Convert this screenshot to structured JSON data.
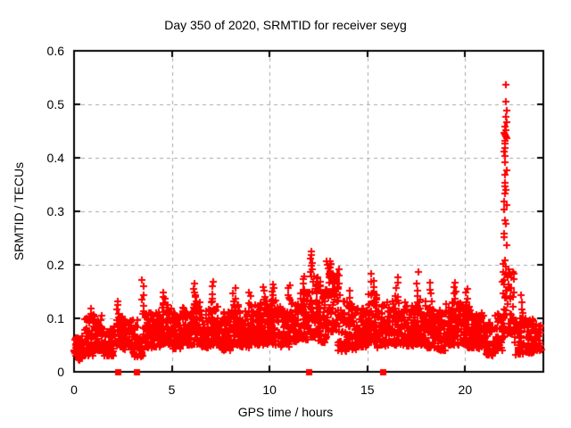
{
  "chart_data": {
    "type": "scatter",
    "title": "Day 350 of 2020, SRMTID for receiver seyg",
    "xlabel": "GPS time / hours",
    "ylabel": "SRMTID / TECUs",
    "xlim": [
      0,
      24
    ],
    "ylim": [
      0,
      0.6
    ],
    "xticks": [
      0,
      5,
      10,
      15,
      20
    ],
    "xtick_labels": [
      "0",
      "5",
      "10",
      "15",
      "20"
    ],
    "yticks": [
      0,
      0.1,
      0.2,
      0.3,
      0.4,
      0.5,
      0.6
    ],
    "ytick_labels": [
      "0",
      "0.1",
      "0.2",
      "0.3",
      "0.4",
      "0.5",
      "0.6"
    ],
    "grid": true,
    "legend": "none",
    "marker": "plus",
    "colors": {
      "marker": "#ff0000",
      "grid": "#a8a8a8",
      "border": "#000000",
      "background": "#ffffff",
      "text": "#000000"
    },
    "seed": 350,
    "band_bins": [
      [
        0.0,
        0.5,
        50,
        0.022,
        0.068
      ],
      [
        0.5,
        1.0,
        55,
        0.03,
        0.1
      ],
      [
        1.0,
        1.5,
        55,
        0.04,
        0.108
      ],
      [
        1.5,
        2.0,
        50,
        0.03,
        0.082
      ],
      [
        2.0,
        2.5,
        55,
        0.045,
        0.105
      ],
      [
        2.5,
        3.0,
        55,
        0.04,
        0.098
      ],
      [
        3.0,
        3.5,
        45,
        0.028,
        0.1
      ],
      [
        3.5,
        4.0,
        50,
        0.045,
        0.115
      ],
      [
        4.0,
        4.5,
        55,
        0.045,
        0.112
      ],
      [
        4.5,
        5.0,
        55,
        0.05,
        0.126
      ],
      [
        5.0,
        5.5,
        55,
        0.042,
        0.11
      ],
      [
        5.5,
        6.0,
        55,
        0.05,
        0.122
      ],
      [
        6.0,
        6.5,
        55,
        0.05,
        0.132
      ],
      [
        6.5,
        7.0,
        55,
        0.045,
        0.118
      ],
      [
        7.0,
        7.5,
        55,
        0.05,
        0.13
      ],
      [
        7.5,
        8.0,
        55,
        0.04,
        0.112
      ],
      [
        8.0,
        8.5,
        55,
        0.05,
        0.126
      ],
      [
        8.5,
        9.0,
        55,
        0.045,
        0.118
      ],
      [
        9.0,
        9.5,
        55,
        0.05,
        0.126
      ],
      [
        9.5,
        10.0,
        55,
        0.05,
        0.132
      ],
      [
        10.0,
        10.5,
        55,
        0.05,
        0.136
      ],
      [
        10.5,
        11.0,
        55,
        0.046,
        0.122
      ],
      [
        11.0,
        11.5,
        55,
        0.055,
        0.136
      ],
      [
        11.5,
        12.0,
        55,
        0.06,
        0.155
      ],
      [
        12.0,
        12.5,
        55,
        0.065,
        0.182
      ],
      [
        12.5,
        13.0,
        55,
        0.055,
        0.162
      ],
      [
        13.0,
        13.5,
        55,
        0.075,
        0.185
      ],
      [
        13.5,
        14.0,
        55,
        0.038,
        0.132
      ],
      [
        14.0,
        14.5,
        55,
        0.04,
        0.122
      ],
      [
        14.5,
        15.0,
        55,
        0.045,
        0.12
      ],
      [
        15.0,
        15.5,
        55,
        0.055,
        0.15
      ],
      [
        15.5,
        16.0,
        55,
        0.045,
        0.128
      ],
      [
        16.0,
        16.5,
        55,
        0.05,
        0.142
      ],
      [
        16.5,
        17.0,
        55,
        0.05,
        0.132
      ],
      [
        17.0,
        17.5,
        55,
        0.048,
        0.125
      ],
      [
        17.5,
        18.0,
        55,
        0.05,
        0.135
      ],
      [
        18.0,
        18.5,
        55,
        0.045,
        0.122
      ],
      [
        18.5,
        19.0,
        55,
        0.04,
        0.115
      ],
      [
        19.0,
        19.5,
        55,
        0.05,
        0.13
      ],
      [
        19.5,
        20.0,
        55,
        0.05,
        0.13
      ],
      [
        20.0,
        20.5,
        55,
        0.045,
        0.122
      ],
      [
        20.5,
        21.0,
        55,
        0.04,
        0.112
      ],
      [
        21.0,
        21.5,
        50,
        0.03,
        0.096
      ],
      [
        21.5,
        22.0,
        45,
        0.04,
        0.112
      ],
      [
        22.0,
        22.5,
        50,
        0.07,
        0.19
      ],
      [
        22.5,
        23.0,
        50,
        0.032,
        0.108
      ],
      [
        23.0,
        23.5,
        45,
        0.035,
        0.1
      ],
      [
        23.5,
        23.9,
        30,
        0.04,
        0.09
      ]
    ],
    "peak_clusters": [
      [
        0.85,
        0.118,
        4
      ],
      [
        2.25,
        0.132,
        5
      ],
      [
        3.52,
        0.172,
        6
      ],
      [
        4.6,
        0.148,
        5
      ],
      [
        6.15,
        0.165,
        6
      ],
      [
        7.1,
        0.168,
        5
      ],
      [
        8.2,
        0.156,
        5
      ],
      [
        9.0,
        0.148,
        4
      ],
      [
        9.75,
        0.158,
        5
      ],
      [
        10.15,
        0.163,
        5
      ],
      [
        11.0,
        0.162,
        5
      ],
      [
        11.8,
        0.178,
        5
      ],
      [
        12.55,
        0.168,
        4
      ],
      [
        13.1,
        0.206,
        6
      ],
      [
        13.55,
        0.192,
        6
      ],
      [
        14.1,
        0.152,
        4
      ],
      [
        15.25,
        0.183,
        6
      ],
      [
        16.5,
        0.176,
        5
      ],
      [
        17.6,
        0.186,
        4
      ],
      [
        18.25,
        0.166,
        5
      ],
      [
        19.45,
        0.166,
        6
      ],
      [
        20.1,
        0.155,
        5
      ],
      [
        22.9,
        0.143,
        4
      ]
    ],
    "outlier_points": [
      [
        22.08,
        0.536
      ],
      [
        22.1,
        0.505
      ],
      [
        22.13,
        0.489
      ],
      [
        22.07,
        0.476
      ],
      [
        22.11,
        0.467
      ],
      [
        22.04,
        0.459
      ],
      [
        22.09,
        0.452
      ],
      [
        22.0,
        0.447
      ],
      [
        22.03,
        0.443
      ],
      [
        22.07,
        0.44
      ],
      [
        22.11,
        0.436
      ],
      [
        22.02,
        0.431
      ],
      [
        22.06,
        0.427
      ],
      [
        22.04,
        0.419
      ],
      [
        22.0,
        0.411
      ],
      [
        22.05,
        0.404
      ],
      [
        22.03,
        0.391
      ],
      [
        22.12,
        0.376
      ],
      [
        22.05,
        0.369
      ],
      [
        22.02,
        0.353
      ],
      [
        22.06,
        0.346
      ],
      [
        22.1,
        0.34
      ],
      [
        22.03,
        0.334
      ],
      [
        21.98,
        0.318
      ],
      [
        22.12,
        0.311
      ],
      [
        22.0,
        0.304
      ],
      [
        22.06,
        0.283
      ],
      [
        22.09,
        0.276
      ],
      [
        21.97,
        0.259
      ],
      [
        22.01,
        0.252
      ],
      [
        22.15,
        0.236
      ],
      [
        22.03,
        0.208
      ],
      [
        21.95,
        0.201
      ],
      [
        22.1,
        0.197
      ],
      [
        22.2,
        0.191
      ],
      [
        21.93,
        0.186
      ],
      [
        22.05,
        0.181
      ],
      [
        22.17,
        0.176
      ],
      [
        21.9,
        0.169
      ],
      [
        22.0,
        0.164
      ],
      [
        22.22,
        0.158
      ],
      [
        22.12,
        0.151
      ],
      [
        21.96,
        0.146
      ],
      [
        22.3,
        0.141
      ],
      [
        12.12,
        0.225
      ],
      [
        12.15,
        0.218
      ],
      [
        12.1,
        0.211
      ],
      [
        12.17,
        0.204
      ],
      [
        12.13,
        0.198
      ],
      [
        12.2,
        0.192
      ],
      [
        12.08,
        0.186
      ],
      [
        12.15,
        0.179
      ],
      [
        12.9,
        0.207
      ],
      [
        12.95,
        0.2
      ],
      [
        13.0,
        0.194
      ]
    ],
    "zero_markers_x": [
      2.25,
      3.2,
      12.0,
      15.8
    ]
  }
}
